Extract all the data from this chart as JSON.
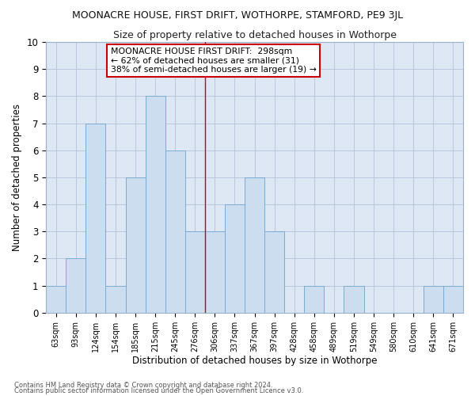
{
  "title": "MOONACRE HOUSE, FIRST DRIFT, WOTHORPE, STAMFORD, PE9 3JL",
  "subtitle": "Size of property relative to detached houses in Wothorpe",
  "xlabel": "Distribution of detached houses by size in Wothorpe",
  "ylabel": "Number of detached properties",
  "bar_labels": [
    "63sqm",
    "93sqm",
    "124sqm",
    "154sqm",
    "185sqm",
    "215sqm",
    "245sqm",
    "276sqm",
    "306sqm",
    "337sqm",
    "367sqm",
    "397sqm",
    "428sqm",
    "458sqm",
    "489sqm",
    "519sqm",
    "549sqm",
    "580sqm",
    "610sqm",
    "641sqm",
    "671sqm"
  ],
  "bar_values": [
    1,
    2,
    7,
    1,
    5,
    8,
    6,
    3,
    3,
    4,
    5,
    3,
    0,
    1,
    0,
    1,
    0,
    0,
    0,
    1,
    1
  ],
  "bar_color": "#ccddf0",
  "bar_edgecolor": "#7aaad4",
  "grid_color": "#b8c8dc",
  "background_color": "#dde8f4",
  "vline_x": 8,
  "vline_color": "#cc0000",
  "legend_title": "MOONACRE HOUSE FIRST DRIFT:  298sqm",
  "legend_line1": "← 62% of detached houses are smaller (31)",
  "legend_line2": "38% of semi-detached houses are larger (19) →",
  "legend_box_color": "#cc0000",
  "footnote1": "Contains HM Land Registry data © Crown copyright and database right 2024.",
  "footnote2": "Contains public sector information licensed under the Open Government Licence v3.0.",
  "ylim": [
    0,
    10
  ],
  "yticks": [
    0,
    1,
    2,
    3,
    4,
    5,
    6,
    7,
    8,
    9,
    10
  ]
}
